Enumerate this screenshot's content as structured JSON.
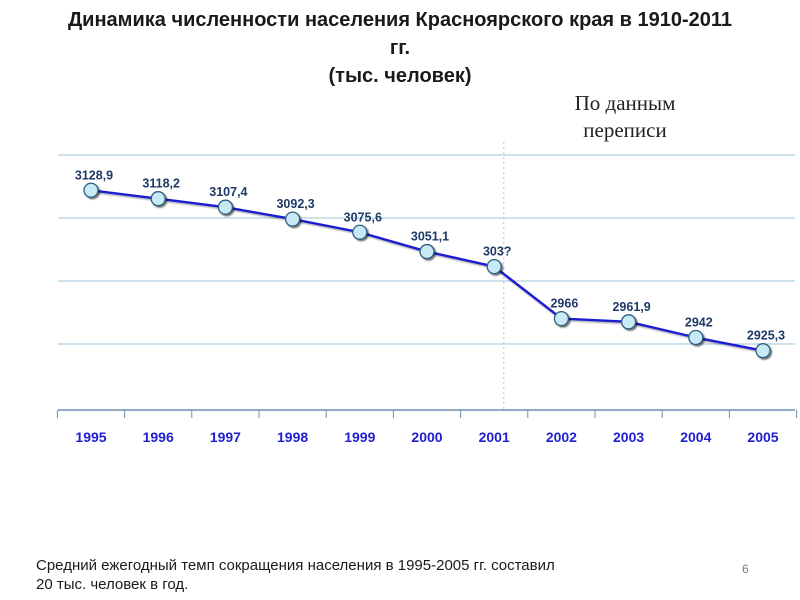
{
  "slide": {
    "title_lines": [
      "Динамика численности населения Красноярского края в 1910-2011",
      "гг.",
      "(тыс. человек)"
    ],
    "census_note_lines": [
      "По данным",
      "переписи"
    ],
    "footnote_lines": [
      "Средний ежегодный темп сокращения населения в 1995-2005 гг. составил",
      "20 тыс. человек в год."
    ],
    "slide_number": "6"
  },
  "chart_data": {
    "type": "line",
    "categories": [
      "1995",
      "1996",
      "1997",
      "1998",
      "1999",
      "2000",
      "2001",
      "2002",
      "2003",
      "2004",
      "2005"
    ],
    "series": [
      {
        "values": [
          3128.9,
          3118.2,
          3107.4,
          3092.3,
          3075.6,
          3051.1,
          3032,
          2966,
          2961.9,
          2942,
          2925.3
        ],
        "labels": [
          "3128,9",
          "3118,2",
          "3107,4",
          "3092,3",
          "3075,6",
          "3051,1",
          "303?",
          "2966",
          "2961,9",
          "2942",
          "2925,3"
        ]
      }
    ],
    "title": "",
    "xlabel": "",
    "ylabel": "",
    "ylim": [
      2850,
      3180
    ],
    "grid": true,
    "legend": "none",
    "divider_after_category": "2001",
    "colors": {
      "line": "#1f1fd0",
      "marker_fill": "#c8eaf7",
      "marker_stroke": "#2e5f7f",
      "marker_shadow": "#1a1a1a",
      "label": "#1f3a66",
      "tick_label": "#1f1fd0",
      "grid": "#9cc4dc",
      "axis": "#6e8fb0"
    }
  }
}
